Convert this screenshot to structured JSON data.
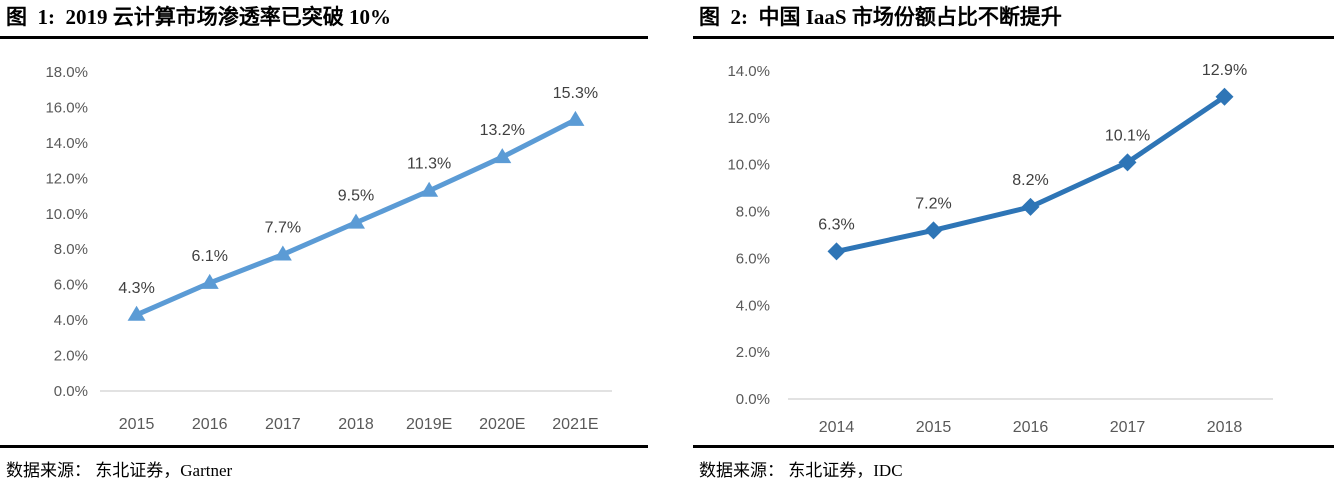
{
  "figures": [
    {
      "panel": "left"
    },
    {
      "panel": "right"
    }
  ],
  "chart_data": [
    {
      "type": "line",
      "title": "图  1:  2019 云计算市场渗透率已突破 10%",
      "source": "数据来源： 东北证券，Gartner",
      "categories": [
        "2015",
        "2016",
        "2017",
        "2018",
        "2019E",
        "2020E",
        "2021E"
      ],
      "values": [
        4.3,
        6.1,
        7.7,
        9.5,
        11.3,
        13.2,
        15.3
      ],
      "data_labels": [
        "4.3%",
        "6.1%",
        "7.7%",
        "9.5%",
        "11.3%",
        "13.2%",
        "15.3%"
      ],
      "ytick_labels": [
        "0.0%",
        "2.0%",
        "4.0%",
        "6.0%",
        "8.0%",
        "10.0%",
        "12.0%",
        "14.0%",
        "16.0%",
        "18.0%"
      ],
      "ylim": [
        0,
        18
      ],
      "ytick_step": 2,
      "xlabel": "",
      "ylabel": "",
      "grid": false,
      "legend": "none",
      "marker": "triangle",
      "line_color": "#5B9BD5",
      "axis_line_color": "#D9D9D9",
      "tick_label_color": "#595959",
      "data_label_color": "#404040"
    },
    {
      "type": "line",
      "title": "图  2:  中国 IaaS 市场份额占比不断提升",
      "source": "数据来源： 东北证券，IDC",
      "categories": [
        "2014",
        "2015",
        "2016",
        "2017",
        "2018"
      ],
      "values": [
        6.3,
        7.2,
        8.2,
        10.1,
        12.9
      ],
      "data_labels": [
        "6.3%",
        "7.2%",
        "8.2%",
        "10.1%",
        "12.9%"
      ],
      "ytick_labels": [
        "0.0%",
        "2.0%",
        "4.0%",
        "6.0%",
        "8.0%",
        "10.0%",
        "12.0%",
        "14.0%"
      ],
      "ylim": [
        0,
        14
      ],
      "ytick_step": 2,
      "xlabel": "",
      "ylabel": "",
      "grid": false,
      "legend": "none",
      "marker": "diamond",
      "line_color": "#2E75B6",
      "axis_line_color": "#D9D9D9",
      "tick_label_color": "#595959",
      "data_label_color": "#404040"
    }
  ]
}
